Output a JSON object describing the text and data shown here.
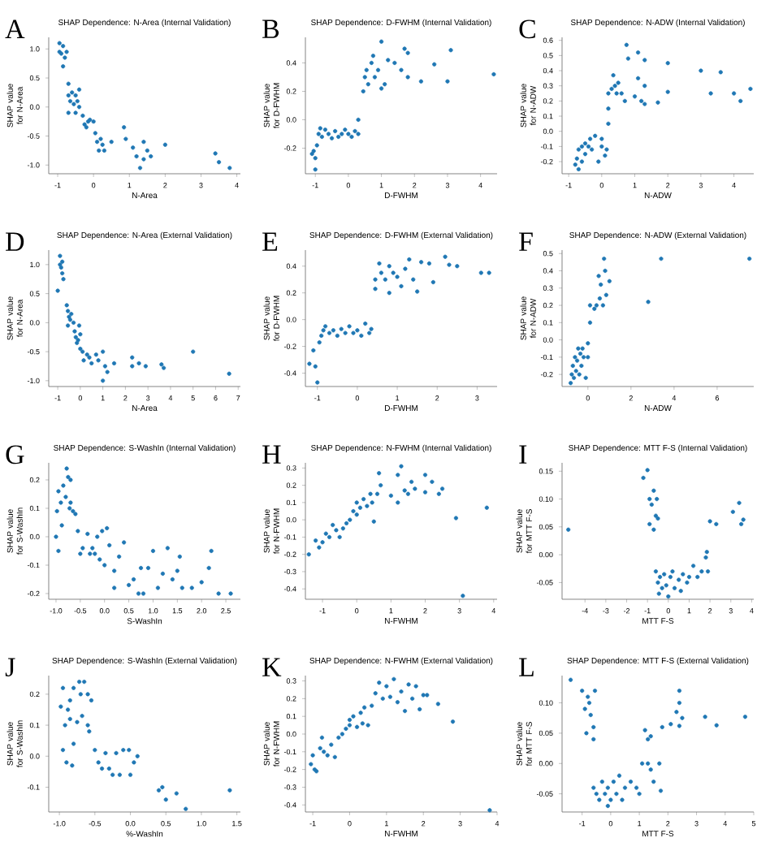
{
  "chart_data": [
    {
      "type": "scatter",
      "title": "SHAP Dependence: N-Area (Internal Validation)",
      "xlabel": "N-Area",
      "ylabel": "SHAP value for N-Area",
      "annotations": [
        "A"
      ],
      "color": "#1f77b4",
      "xlim": [
        -1.25,
        4.1
      ],
      "ylim": [
        -1.15,
        1.2
      ],
      "xticks": [
        -1,
        0,
        1,
        2,
        3,
        4
      ],
      "yticks": [
        {
          "value": -1,
          "label": "-1.0"
        },
        {
          "value": -0.5,
          "label": "-0.5"
        },
        {
          "value": 0,
          "label": "0.0"
        },
        {
          "value": 0.5,
          "label": "0.5"
        },
        {
          "value": 1,
          "label": "1.0"
        }
      ],
      "x": [
        -0.95,
        -0.95,
        -0.9,
        -0.85,
        -0.8,
        -0.85,
        -0.75,
        -0.7,
        -0.7,
        -0.6,
        -0.65,
        -0.55,
        -0.5,
        -0.45,
        -0.4,
        -0.4,
        -0.7,
        -0.5,
        -0.3,
        -0.25,
        -0.15,
        -0.1,
        0.0,
        -0.2,
        0.05,
        0.1,
        0.2,
        0.25,
        0.3,
        0.15,
        0.5,
        0.85,
        0.9,
        1.1,
        1.2,
        1.3,
        1.4,
        1.4,
        1.5,
        1.6,
        2.0,
        3.4,
        3.5,
        3.8
      ],
      "values": [
        1.1,
        0.95,
        0.92,
        1.05,
        0.85,
        0.7,
        0.95,
        0.4,
        0.2,
        0.25,
        0.1,
        0.05,
        0.2,
        0.1,
        0.3,
        0.0,
        -0.1,
        -0.1,
        -0.15,
        -0.3,
        -0.25,
        -0.22,
        -0.25,
        -0.35,
        -0.45,
        -0.6,
        -0.55,
        -0.65,
        -0.75,
        -0.75,
        -0.6,
        -0.35,
        -0.55,
        -0.7,
        -0.85,
        -1.05,
        -0.9,
        -0.6,
        -0.75,
        -0.85,
        -0.65,
        -0.8,
        -0.95,
        -1.05
      ]
    },
    {
      "type": "scatter",
      "title": "SHAP Dependence: D-FWHM (Internal Validation)",
      "xlabel": "D-FWHM",
      "ylabel": "SHAP value for D-FWHM",
      "annotations": [
        "B"
      ],
      "color": "#1f77b4",
      "xlim": [
        -1.3,
        4.5
      ],
      "ylim": [
        -0.38,
        0.58
      ],
      "xticks": [
        -1,
        0,
        1,
        2,
        3,
        4
      ],
      "yticks": [
        {
          "value": -0.2,
          "label": "-0.2"
        },
        {
          "value": 0,
          "label": "0.0"
        },
        {
          "value": 0.2,
          "label": "0.2"
        },
        {
          "value": 0.4,
          "label": "0.4"
        }
      ],
      "x": [
        -1.1,
        -1.05,
        -1.0,
        -1.0,
        -0.95,
        -0.9,
        -0.85,
        -0.8,
        -0.7,
        -0.6,
        -0.5,
        -0.4,
        -0.3,
        -0.2,
        -0.1,
        0.0,
        0.1,
        0.2,
        0.3,
        0.3,
        0.45,
        0.5,
        0.55,
        0.6,
        0.7,
        0.75,
        0.8,
        0.9,
        1.0,
        1.0,
        1.1,
        1.2,
        1.4,
        1.6,
        1.7,
        1.8,
        1.8,
        2.2,
        2.6,
        3.0,
        3.1,
        4.4
      ],
      "values": [
        -0.24,
        -0.22,
        -0.27,
        -0.35,
        -0.18,
        -0.1,
        -0.06,
        -0.12,
        -0.07,
        -0.1,
        -0.13,
        -0.08,
        -0.12,
        -0.1,
        -0.07,
        -0.1,
        -0.12,
        -0.08,
        -0.1,
        0.0,
        0.2,
        0.3,
        0.35,
        0.25,
        0.4,
        0.45,
        0.3,
        0.35,
        0.22,
        0.55,
        0.25,
        0.42,
        0.4,
        0.35,
        0.5,
        0.47,
        0.3,
        0.27,
        0.39,
        0.27,
        0.49,
        0.32
      ]
    },
    {
      "type": "scatter",
      "title": "SHAP Dependence: N-ADW (Internal Validation)",
      "xlabel": "N-ADW",
      "ylabel": "SHAP value for N-ADW",
      "annotations": [
        "C"
      ],
      "color": "#1f77b4",
      "xlim": [
        -1.2,
        4.6
      ],
      "ylim": [
        -0.28,
        0.62
      ],
      "xticks": [
        -1,
        0,
        1,
        2,
        3,
        4
      ],
      "yticks": [
        {
          "value": -0.2,
          "label": "-0.2"
        },
        {
          "value": -0.1,
          "label": "-0.1"
        },
        {
          "value": 0,
          "label": "0.0"
        },
        {
          "value": 0.1,
          "label": "0.1"
        },
        {
          "value": 0.2,
          "label": "0.2"
        },
        {
          "value": 0.3,
          "label": "0.3"
        },
        {
          "value": 0.4,
          "label": "0.4"
        },
        {
          "value": 0.5,
          "label": "0.5"
        },
        {
          "value": 0.6,
          "label": "0.6"
        }
      ],
      "x": [
        -0.8,
        -0.75,
        -0.7,
        -0.7,
        -0.6,
        -0.6,
        -0.5,
        -0.5,
        -0.4,
        -0.35,
        -0.3,
        -0.2,
        -0.1,
        0.0,
        0.0,
        0.1,
        0.15,
        0.2,
        0.2,
        0.2,
        0.3,
        0.35,
        0.4,
        0.45,
        0.5,
        0.6,
        0.7,
        0.75,
        0.8,
        1.0,
        1.1,
        1.1,
        1.2,
        1.3,
        1.3,
        1.3,
        1.7,
        2.0,
        2.0,
        3.0,
        3.3,
        3.6,
        4.0,
        4.2,
        4.5
      ],
      "values": [
        -0.22,
        -0.18,
        -0.25,
        -0.12,
        -0.2,
        -0.1,
        -0.15,
        -0.08,
        -0.1,
        -0.05,
        -0.12,
        -0.03,
        -0.2,
        -0.1,
        -0.05,
        -0.16,
        -0.12,
        0.05,
        0.15,
        0.25,
        0.28,
        0.37,
        0.3,
        0.25,
        0.32,
        0.25,
        0.2,
        0.57,
        0.48,
        0.23,
        0.52,
        0.35,
        0.2,
        0.47,
        0.3,
        0.18,
        0.19,
        0.45,
        0.26,
        0.4,
        0.25,
        0.39,
        0.25,
        0.2,
        0.28
      ]
    },
    {
      "type": "scatter",
      "title": "SHAP Dependence: N-Area (External Validation)",
      "xlabel": "N-Area",
      "ylabel": "SHAP value for N-Area",
      "annotations": [
        "D"
      ],
      "color": "#1f77b4",
      "xlim": [
        -1.4,
        7.1
      ],
      "ylim": [
        -1.1,
        1.25
      ],
      "xticks": [
        -1,
        0,
        1,
        2,
        3,
        4,
        5,
        6,
        7
      ],
      "yticks": [
        {
          "value": -1,
          "label": "-1.0"
        },
        {
          "value": -0.5,
          "label": "-0.5"
        },
        {
          "value": 0,
          "label": "0.0"
        },
        {
          "value": 0.5,
          "label": "0.5"
        },
        {
          "value": 1,
          "label": "1.0"
        }
      ],
      "x": [
        -0.9,
        -0.9,
        -0.85,
        -0.8,
        -0.75,
        -0.8,
        -1.0,
        -0.6,
        -0.55,
        -0.5,
        -0.45,
        -0.4,
        -0.55,
        -0.3,
        -0.25,
        -0.2,
        -0.15,
        -0.1,
        0.0,
        -0.05,
        0.0,
        0.1,
        0.15,
        0.3,
        0.4,
        0.5,
        0.7,
        0.8,
        1.0,
        1.0,
        1.1,
        1.2,
        1.5,
        2.3,
        2.3,
        2.6,
        2.9,
        3.6,
        3.7,
        5.0,
        6.6
      ],
      "values": [
        1.15,
        1.0,
        0.95,
        0.85,
        0.75,
        1.05,
        0.55,
        0.3,
        0.2,
        0.1,
        0.05,
        0.15,
        -0.05,
        0.0,
        -0.15,
        -0.25,
        -0.35,
        -0.3,
        -0.2,
        -0.05,
        -0.45,
        -0.5,
        -0.65,
        -0.55,
        -0.6,
        -0.7,
        -0.55,
        -0.65,
        -0.5,
        -1.0,
        -0.75,
        -0.85,
        -0.7,
        -0.6,
        -0.75,
        -0.7,
        -0.75,
        -0.72,
        -0.78,
        -0.5,
        -0.88
      ]
    },
    {
      "type": "scatter",
      "title": "SHAP Dependence: D-FWHM (External Validation)",
      "xlabel": "D-FWHM",
      "ylabel": "SHAP value for D-FWHM",
      "annotations": [
        "E"
      ],
      "color": "#1f77b4",
      "xlim": [
        -1.3,
        3.5
      ],
      "ylim": [
        -0.5,
        0.52
      ],
      "xticks": [
        -1,
        0,
        1,
        2,
        3
      ],
      "yticks": [
        {
          "value": -0.4,
          "label": "-0.4"
        },
        {
          "value": -0.2,
          "label": "-0.2"
        },
        {
          "value": 0,
          "label": "0.0"
        },
        {
          "value": 0.2,
          "label": "0.2"
        },
        {
          "value": 0.4,
          "label": "0.4"
        }
      ],
      "x": [
        -1.2,
        -1.1,
        -1.05,
        -1.0,
        -0.95,
        -0.9,
        -0.85,
        -0.8,
        -0.7,
        -0.6,
        -0.5,
        -0.4,
        -0.3,
        -0.2,
        -0.1,
        0.0,
        0.1,
        0.2,
        0.3,
        0.35,
        0.45,
        0.45,
        0.55,
        0.6,
        0.7,
        0.8,
        0.8,
        0.9,
        1.0,
        1.1,
        1.2,
        1.3,
        1.4,
        1.5,
        1.6,
        1.8,
        1.9,
        2.2,
        2.3,
        2.5,
        3.1,
        3.3
      ],
      "values": [
        -0.33,
        -0.23,
        -0.35,
        -0.47,
        -0.17,
        -0.12,
        -0.08,
        -0.05,
        -0.1,
        -0.08,
        -0.12,
        -0.07,
        -0.1,
        -0.05,
        -0.1,
        -0.08,
        -0.12,
        -0.03,
        -0.1,
        -0.07,
        0.3,
        0.23,
        0.42,
        0.35,
        0.3,
        0.4,
        0.2,
        0.35,
        0.32,
        0.25,
        0.38,
        0.45,
        0.3,
        0.21,
        0.43,
        0.42,
        0.28,
        0.47,
        0.41,
        0.4,
        0.35,
        0.35
      ]
    },
    {
      "type": "scatter",
      "title": "SHAP Dependence: N-ADW (External Validation)",
      "xlabel": "N-ADW",
      "ylabel": "SHAP value for N-ADW",
      "annotations": [
        "F"
      ],
      "color": "#1f77b4",
      "xlim": [
        -1.2,
        7.7
      ],
      "ylim": [
        -0.27,
        0.52
      ],
      "xticks": [
        0,
        2,
        4,
        6
      ],
      "yticks": [
        {
          "value": -0.2,
          "label": "-0.2"
        },
        {
          "value": -0.1,
          "label": "-0.1"
        },
        {
          "value": 0,
          "label": "0.0"
        },
        {
          "value": 0.1,
          "label": "0.1"
        },
        {
          "value": 0.2,
          "label": "0.2"
        },
        {
          "value": 0.3,
          "label": "0.3"
        },
        {
          "value": 0.4,
          "label": "0.4"
        },
        {
          "value": 0.5,
          "label": "0.5"
        }
      ],
      "x": [
        -0.8,
        -0.75,
        -0.7,
        -0.65,
        -0.6,
        -0.55,
        -0.5,
        -0.45,
        -0.4,
        -0.35,
        -0.3,
        -0.25,
        -0.2,
        -0.1,
        0.0,
        0.0,
        0.1,
        0.1,
        0.3,
        0.4,
        0.5,
        0.55,
        0.6,
        0.7,
        0.75,
        0.8,
        0.85,
        1.0,
        2.8,
        3.4,
        7.5
      ],
      "values": [
        -0.25,
        -0.2,
        -0.15,
        -0.22,
        -0.1,
        -0.18,
        -0.12,
        -0.05,
        -0.2,
        -0.08,
        -0.15,
        -0.05,
        -0.1,
        -0.22,
        -0.02,
        -0.1,
        0.1,
        0.2,
        0.18,
        0.2,
        0.37,
        0.24,
        0.32,
        0.2,
        0.47,
        0.4,
        0.26,
        0.34,
        0.22,
        0.47,
        0.47
      ]
    },
    {
      "type": "scatter",
      "title": "SHAP Dependence: S-WashIn (Internal Validation)",
      "xlabel": "S-WashIn",
      "ylabel": "SHAP value for S-WashIn",
      "annotations": [
        "G"
      ],
      "color": "#1f77b4",
      "xlim": [
        -1.15,
        2.8
      ],
      "ylim": [
        -0.22,
        0.26
      ],
      "xticks": [
        {
          "value": -1,
          "label": "-1.0"
        },
        {
          "value": -0.5,
          "label": "-0.5"
        },
        {
          "value": 0,
          "label": "0.0"
        },
        {
          "value": 0.5,
          "label": "0.5"
        },
        {
          "value": 1,
          "label": "1.0"
        },
        {
          "value": 1.5,
          "label": "1.5"
        },
        {
          "value": 2,
          "label": "2.0"
        },
        {
          "value": 2.5,
          "label": "2.5"
        }
      ],
      "yticks": [
        {
          "value": -0.2,
          "label": "-0.2"
        },
        {
          "value": -0.1,
          "label": "-0.1"
        },
        {
          "value": 0,
          "label": "0.0"
        },
        {
          "value": 0.1,
          "label": "0.1"
        },
        {
          "value": 0.2,
          "label": "0.2"
        }
      ],
      "x": [
        -1.0,
        -0.98,
        -0.95,
        -0.95,
        -0.9,
        -0.88,
        -0.85,
        -0.8,
        -0.78,
        -0.75,
        -0.7,
        -0.72,
        -0.7,
        -0.65,
        -0.6,
        -0.55,
        -0.5,
        -0.45,
        -0.35,
        -0.3,
        -0.25,
        -0.2,
        -0.15,
        -0.1,
        -0.05,
        0.0,
        0.05,
        0.1,
        0.2,
        0.2,
        0.3,
        0.4,
        0.5,
        0.6,
        0.7,
        0.75,
        0.8,
        0.9,
        1.0,
        1.1,
        1.2,
        1.3,
        1.4,
        1.5,
        1.55,
        1.6,
        1.8,
        2.0,
        2.15,
        2.2,
        2.35,
        2.6
      ],
      "values": [
        0.0,
        0.09,
        0.16,
        -0.05,
        0.12,
        0.04,
        0.18,
        0.14,
        0.24,
        0.21,
        0.2,
        0.1,
        0.12,
        0.09,
        0.08,
        0.02,
        -0.06,
        -0.04,
        0.01,
        -0.06,
        -0.04,
        -0.06,
        0.0,
        -0.08,
        0.02,
        -0.1,
        0.03,
        -0.03,
        -0.18,
        -0.12,
        -0.07,
        -0.02,
        -0.17,
        -0.15,
        -0.2,
        -0.11,
        -0.2,
        -0.11,
        -0.05,
        -0.18,
        -0.13,
        -0.04,
        -0.15,
        -0.12,
        -0.07,
        -0.18,
        -0.18,
        -0.16,
        -0.11,
        -0.05,
        -0.2,
        -0.2
      ]
    },
    {
      "type": "scatter",
      "title": "SHAP Dependence: N-FWHM (Internal Validation)",
      "xlabel": "N-FWHM",
      "ylabel": "SHAP value for N-FWHM",
      "annotations": [
        "H"
      ],
      "color": "#1f77b4",
      "xlim": [
        -1.5,
        4.1
      ],
      "ylim": [
        -0.46,
        0.33
      ],
      "xticks": [
        -1,
        0,
        1,
        2,
        3,
        4
      ],
      "yticks": [
        {
          "value": -0.4,
          "label": "-0.4"
        },
        {
          "value": -0.3,
          "label": "-0.3"
        },
        {
          "value": -0.2,
          "label": "-0.2"
        },
        {
          "value": -0.1,
          "label": "-0.1"
        },
        {
          "value": 0,
          "label": "0.0"
        },
        {
          "value": 0.1,
          "label": "0.1"
        },
        {
          "value": 0.2,
          "label": "0.2"
        },
        {
          "value": 0.3,
          "label": "0.3"
        }
      ],
      "x": [
        -1.4,
        -1.2,
        -1.1,
        -1.0,
        -0.9,
        -0.8,
        -0.7,
        -0.6,
        -0.5,
        -0.4,
        -0.3,
        -0.2,
        -0.1,
        0.0,
        0.0,
        0.1,
        0.2,
        0.3,
        0.4,
        0.45,
        0.5,
        0.6,
        0.65,
        0.7,
        1.0,
        1.2,
        1.2,
        1.3,
        1.4,
        1.5,
        1.6,
        1.7,
        2.0,
        2.0,
        2.2,
        2.4,
        2.5,
        2.9,
        3.1,
        3.8
      ],
      "values": [
        -0.2,
        -0.12,
        -0.16,
        -0.13,
        -0.08,
        -0.1,
        -0.03,
        -0.06,
        -0.1,
        -0.05,
        -0.02,
        0.0,
        0.05,
        0.03,
        0.1,
        0.07,
        0.12,
        0.08,
        0.15,
        0.1,
        -0.01,
        0.15,
        0.27,
        0.2,
        0.14,
        0.1,
        0.26,
        0.31,
        0.17,
        0.15,
        0.22,
        0.18,
        0.26,
        0.16,
        0.22,
        0.15,
        0.18,
        0.01,
        -0.44,
        0.07
      ]
    },
    {
      "type": "scatter",
      "title": "SHAP Dependence: MTT F-S (Internal Validation)",
      "xlabel": "MTT F-S",
      "ylabel": "SHAP value for MTT F-S",
      "annotations": [
        "I"
      ],
      "color": "#1f77b4",
      "xlim": [
        -5.1,
        4.1
      ],
      "ylim": [
        -0.08,
        0.165
      ],
      "xticks": [
        -4,
        -3,
        -2,
        -1,
        0,
        1,
        2,
        3,
        4
      ],
      "yticks": [
        {
          "value": -0.05,
          "label": "-0.05"
        },
        {
          "value": 0,
          "label": "0.00"
        },
        {
          "value": 0.05,
          "label": "0.05"
        },
        {
          "value": 0.1,
          "label": "0.10"
        },
        {
          "value": 0.15,
          "label": "0.15"
        }
      ],
      "x": [
        -4.8,
        -1.2,
        -1.0,
        -0.9,
        -0.9,
        -0.8,
        -0.7,
        -0.7,
        -0.6,
        -0.55,
        -0.5,
        -0.6,
        -0.5,
        -0.45,
        -0.4,
        -0.3,
        -0.2,
        -0.1,
        0.0,
        0.1,
        0.2,
        0.3,
        0.5,
        0.6,
        0.7,
        0.9,
        1.0,
        1.2,
        1.4,
        1.6,
        1.8,
        1.85,
        2.0,
        2.3,
        1.9,
        3.1,
        3.4,
        3.5,
        3.6
      ],
      "values": [
        0.045,
        0.138,
        0.152,
        0.1,
        0.055,
        0.09,
        0.115,
        0.045,
        0.07,
        0.1,
        0.065,
        -0.03,
        -0.05,
        -0.07,
        -0.04,
        -0.06,
        -0.035,
        -0.055,
        -0.075,
        -0.04,
        -0.03,
        -0.06,
        -0.045,
        -0.065,
        -0.035,
        -0.05,
        -0.04,
        -0.02,
        -0.04,
        -0.03,
        -0.005,
        0.005,
        0.06,
        0.055,
        -0.03,
        0.077,
        0.093,
        0.055,
        0.063
      ]
    },
    {
      "type": "scatter",
      "title": "SHAP Dependence: S-WashIn (External Validation)",
      "xlabel": "%-WashIn",
      "ylabel": "SHAP value for S-WashIn",
      "annotations": [
        "J"
      ],
      "color": "#1f77b4",
      "xlim": [
        -1.15,
        1.55
      ],
      "ylim": [
        -0.18,
        0.26
      ],
      "xticks": [
        {
          "value": -1,
          "label": "-1.0"
        },
        {
          "value": -0.5,
          "label": "-0.5"
        },
        {
          "value": 0,
          "label": "0.0"
        },
        {
          "value": 0.5,
          "label": "0.5"
        },
        {
          "value": 1,
          "label": "1.0"
        },
        {
          "value": 1.5,
          "label": "1.5"
        }
      ],
      "yticks": [
        {
          "value": -0.1,
          "label": "-0.1"
        },
        {
          "value": 0,
          "label": "0.0"
        },
        {
          "value": 0.1,
          "label": "0.1"
        },
        {
          "value": 0.2,
          "label": "0.2"
        }
      ],
      "x": [
        -0.98,
        -0.95,
        -0.95,
        -0.92,
        -0.9,
        -0.88,
        -0.85,
        -0.85,
        -0.82,
        -0.8,
        -0.8,
        -0.75,
        -0.72,
        -0.7,
        -0.68,
        -0.65,
        -0.6,
        -0.6,
        -0.58,
        -0.55,
        -0.5,
        -0.45,
        -0.4,
        -0.35,
        -0.3,
        -0.25,
        -0.2,
        -0.1,
        -0.15,
        0.0,
        -0.02,
        0.05,
        0.1,
        0.4,
        0.45,
        0.5,
        0.65,
        0.78,
        1.4
      ],
      "values": [
        0.16,
        0.02,
        0.22,
        0.1,
        -0.02,
        0.15,
        0.12,
        0.18,
        -0.03,
        0.04,
        0.22,
        0.11,
        0.24,
        0.2,
        0.13,
        0.24,
        0.1,
        0.2,
        0.08,
        0.18,
        0.02,
        -0.02,
        -0.04,
        0.01,
        -0.04,
        -0.06,
        0.01,
        0.02,
        -0.06,
        -0.06,
        0.02,
        -0.02,
        0.0,
        -0.11,
        -0.1,
        -0.14,
        -0.12,
        -0.17,
        -0.11
      ]
    },
    {
      "type": "scatter",
      "title": "SHAP Dependence: N-FWHM (External Validation)",
      "xlabel": "N-FWHM",
      "ylabel": "SHAP value for N-FWHM",
      "annotations": [
        "K"
      ],
      "color": "#1f77b4",
      "xlim": [
        -1.2,
        4.0
      ],
      "ylim": [
        -0.44,
        0.33
      ],
      "xticks": [
        -1,
        0,
        1,
        2,
        3,
        4
      ],
      "yticks": [
        {
          "value": -0.4,
          "label": "-0.4"
        },
        {
          "value": -0.3,
          "label": "-0.3"
        },
        {
          "value": -0.2,
          "label": "-0.2"
        },
        {
          "value": -0.1,
          "label": "-0.1"
        },
        {
          "value": 0,
          "label": "0.0"
        },
        {
          "value": 0.1,
          "label": "0.1"
        },
        {
          "value": 0.2,
          "label": "0.2"
        },
        {
          "value": 0.3,
          "label": "0.3"
        }
      ],
      "x": [
        -1.05,
        -1.0,
        -0.95,
        -0.9,
        -0.8,
        -0.75,
        -0.7,
        -0.6,
        -0.5,
        -0.4,
        -0.3,
        -0.2,
        -0.1,
        0.0,
        0.0,
        0.1,
        0.2,
        0.3,
        0.35,
        0.4,
        0.5,
        0.6,
        0.7,
        0.8,
        0.9,
        1.0,
        1.1,
        1.2,
        1.3,
        1.4,
        1.5,
        1.6,
        1.7,
        1.8,
        1.9,
        2.0,
        2.1,
        2.4,
        2.8,
        3.8
      ],
      "values": [
        -0.17,
        -0.12,
        -0.2,
        -0.21,
        -0.08,
        -0.02,
        -0.1,
        -0.12,
        -0.06,
        -0.13,
        -0.02,
        0.0,
        0.03,
        0.08,
        0.05,
        0.1,
        0.04,
        0.12,
        0.06,
        0.15,
        0.05,
        0.16,
        0.23,
        0.29,
        0.2,
        0.27,
        0.21,
        0.31,
        0.18,
        0.24,
        0.13,
        0.28,
        0.2,
        0.27,
        0.14,
        0.22,
        0.22,
        0.17,
        0.07,
        -0.43
      ]
    },
    {
      "type": "scatter",
      "title": "SHAP Dependence: MTT F-S (External Validation)",
      "xlabel": "MTT F-S",
      "ylabel": "SHAP value for MTT F-S",
      "annotations": [
        "L"
      ],
      "color": "#1f77b4",
      "xlim": [
        -1.7,
        5.0
      ],
      "ylim": [
        -0.08,
        0.145
      ],
      "xticks": [
        -1,
        0,
        1,
        2,
        3,
        4,
        5
      ],
      "yticks": [
        {
          "value": -0.05,
          "label": "-0.05"
        },
        {
          "value": 0,
          "label": "0.00"
        },
        {
          "value": 0.05,
          "label": "0.05"
        },
        {
          "value": 0.1,
          "label": "0.10"
        }
      ],
      "x": [
        -1.4,
        -1.0,
        -0.9,
        -0.85,
        -0.8,
        -0.75,
        -0.7,
        -0.6,
        -0.6,
        -0.55,
        -0.6,
        -0.5,
        -0.4,
        -0.3,
        -0.2,
        -0.1,
        -0.1,
        0.0,
        0.1,
        0.2,
        0.3,
        0.4,
        0.5,
        0.7,
        0.9,
        1.0,
        1.1,
        1.2,
        1.3,
        1.3,
        1.4,
        1.4,
        1.5,
        1.7,
        1.8,
        1.75,
        2.1,
        2.3,
        2.4,
        2.4,
        2.5,
        2.4,
        3.3,
        3.7,
        4.7
      ],
      "values": [
        0.138,
        0.12,
        0.09,
        0.05,
        0.11,
        0.1,
        0.08,
        0.06,
        0.04,
        0.12,
        -0.04,
        -0.05,
        -0.06,
        -0.03,
        -0.05,
        -0.04,
        -0.07,
        -0.06,
        -0.03,
        -0.05,
        -0.02,
        -0.06,
        -0.04,
        -0.03,
        -0.04,
        -0.05,
        0.0,
        0.055,
        0.04,
        0.0,
        0.045,
        -0.01,
        -0.03,
        0.0,
        0.06,
        -0.045,
        0.065,
        0.085,
        0.12,
        0.1,
        0.075,
        0.062,
        0.077,
        0.063,
        0.077
      ]
    }
  ]
}
